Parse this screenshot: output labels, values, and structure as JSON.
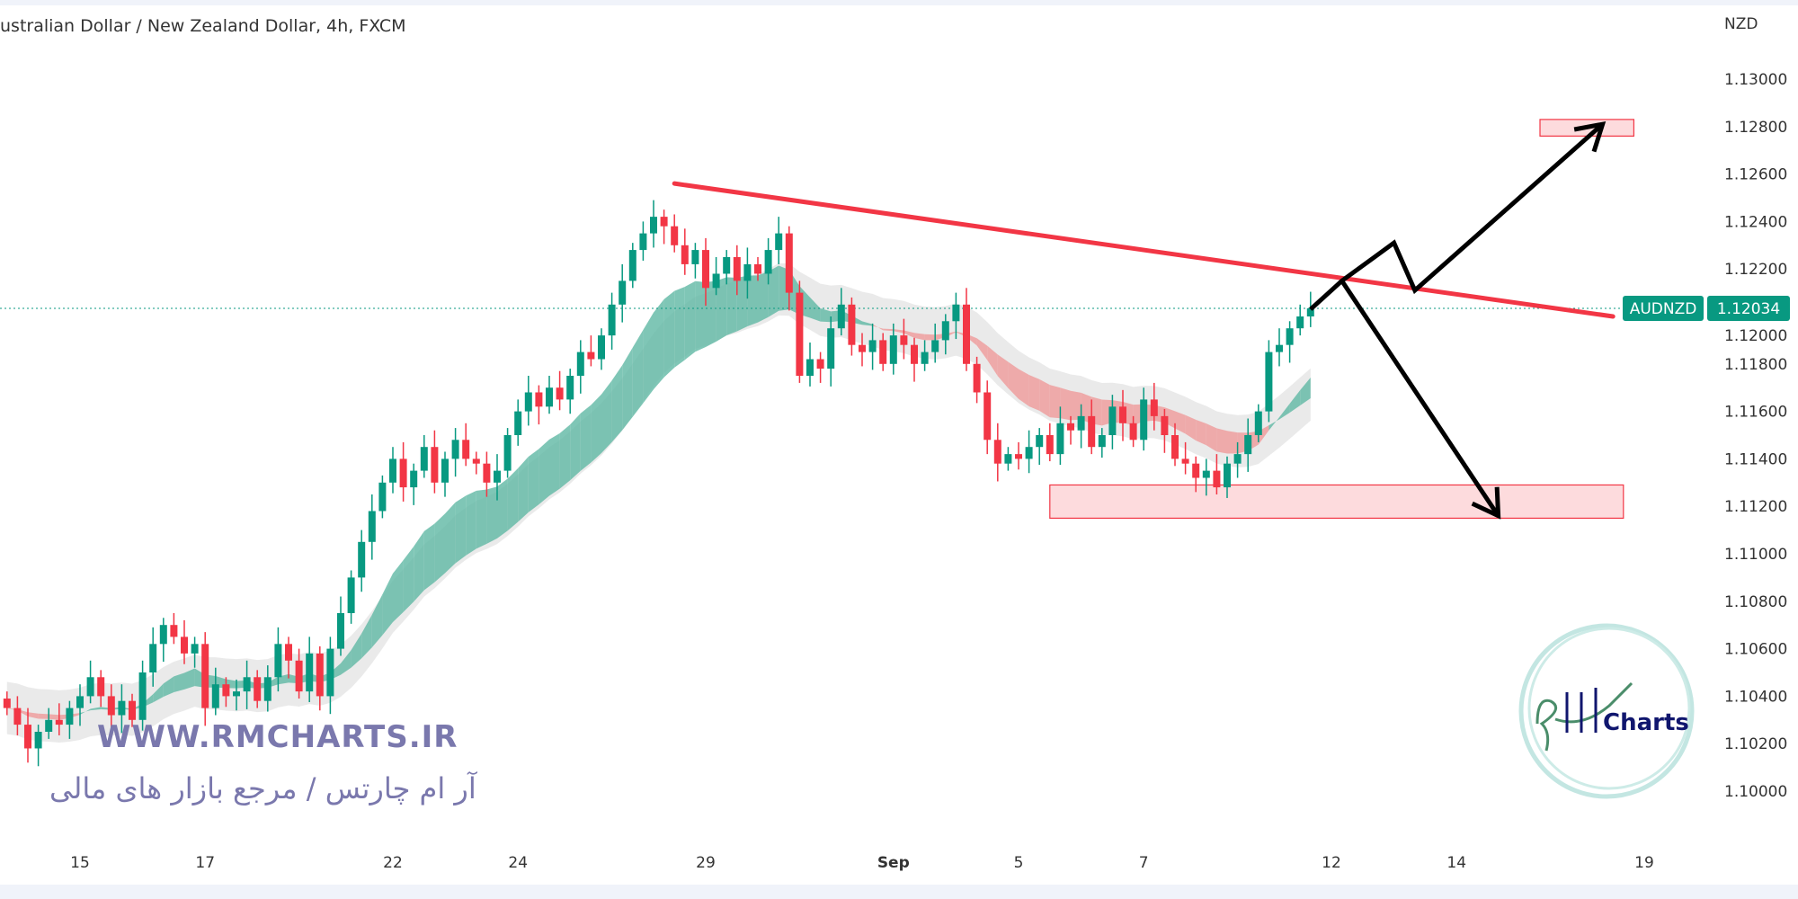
{
  "header": {
    "title": "ustralian Dollar / New Zealand Dollar, 4h, FXCM"
  },
  "price_axis": {
    "currency": "NZD"
  },
  "last_price_label": {
    "symbol": "AUDNZD",
    "price": "1.12034",
    "color": "#089981"
  },
  "watermark": {
    "site": "WWW.RMCHARTS.IR",
    "tagline": "آر ام چارتس / مرجع بازار های مالی",
    "logo_text": "Charts",
    "logo_script": "RM"
  },
  "chart_data": {
    "type": "candlestick",
    "title": "ustralian Dollar / New Zealand Dollar, 4h, FXCM",
    "ylim": [
      1.099,
      1.1315
    ],
    "y_ticks": [
      "1.13000",
      "1.12800",
      "1.12600",
      "1.12400",
      "1.12200",
      "1.12000",
      "1.11800",
      "1.11600",
      "1.11400",
      "1.11200",
      "1.11000",
      "1.10800",
      "1.10600",
      "1.10400",
      "1.10200",
      "1.10000"
    ],
    "x_ticks": [
      {
        "label": "15",
        "day": 0
      },
      {
        "label": "17",
        "day": 2
      },
      {
        "label": "22",
        "day": 5
      },
      {
        "label": "24",
        "day": 7
      },
      {
        "label": "29",
        "day": 10
      },
      {
        "label": "Sep",
        "day": 13
      },
      {
        "label": "5",
        "day": 15
      },
      {
        "label": "7",
        "day": 17
      },
      {
        "label": "12",
        "day": 20
      },
      {
        "label": "14",
        "day": 22
      },
      {
        "label": "19",
        "day": 25
      }
    ],
    "colors": {
      "up": "#089981",
      "down": "#f23645",
      "trendline": "#f23645",
      "zone": "#f23645",
      "arrows": "#000000"
    },
    "closes": [
      1.1035,
      1.1028,
      1.1018,
      1.1025,
      1.103,
      1.1028,
      1.1035,
      1.104,
      1.1048,
      1.104,
      1.1032,
      1.1038,
      1.103,
      1.105,
      1.1062,
      1.107,
      1.1065,
      1.1058,
      1.1062,
      1.1035,
      1.1045,
      1.104,
      1.1042,
      1.1048,
      1.1038,
      1.1048,
      1.1062,
      1.1055,
      1.1042,
      1.1058,
      1.104,
      1.106,
      1.1075,
      1.109,
      1.1105,
      1.1118,
      1.113,
      1.114,
      1.1128,
      1.1135,
      1.1145,
      1.113,
      1.114,
      1.1148,
      1.114,
      1.1138,
      1.113,
      1.1135,
      1.115,
      1.116,
      1.1168,
      1.1162,
      1.117,
      1.1165,
      1.1175,
      1.1185,
      1.1182,
      1.1192,
      1.1205,
      1.1215,
      1.1228,
      1.1235,
      1.1242,
      1.1238,
      1.123,
      1.1222,
      1.1228,
      1.1212,
      1.1218,
      1.1225,
      1.1215,
      1.1222,
      1.1218,
      1.1228,
      1.1235,
      1.121,
      1.1175,
      1.1182,
      1.1178,
      1.1195,
      1.1205,
      1.1188,
      1.1185,
      1.119,
      1.118,
      1.1192,
      1.1188,
      1.118,
      1.1185,
      1.119,
      1.1198,
      1.1205,
      1.118,
      1.1168,
      1.1148,
      1.1138,
      1.1142,
      1.114,
      1.1145,
      1.115,
      1.1142,
      1.1155,
      1.1152,
      1.1158,
      1.1145,
      1.115,
      1.1162,
      1.1155,
      1.1148,
      1.1165,
      1.1158,
      1.115,
      1.114,
      1.1138,
      1.1132,
      1.1135,
      1.1128,
      1.1138,
      1.1142,
      1.115,
      1.116,
      1.1185,
      1.1188,
      1.1195,
      1.12,
      1.12034
    ],
    "last_price": 1.12034,
    "trendline": [
      {
        "bar": 57,
        "price": 1.1256
      },
      {
        "bar": 147,
        "price": 1.12
      }
    ],
    "zones": [
      {
        "from_bar": 140,
        "to_bar": 149,
        "top": 1.1283,
        "bottom": 1.1276
      },
      {
        "from_bar": 93,
        "to_bar": 148,
        "top": 1.1129,
        "bottom": 1.1115
      }
    ],
    "arrows": [
      [
        {
          "bar": 118,
          "price": 1.1203
        },
        {
          "bar": 121,
          "price": 1.1215
        },
        {
          "bar": 126,
          "price": 1.1231
        },
        {
          "bar": 128,
          "price": 1.1211
        },
        {
          "bar": 146,
          "price": 1.1281
        }
      ],
      [
        {
          "bar": 121,
          "price": 1.1215
        },
        {
          "bar": 136,
          "price": 1.1116
        }
      ]
    ]
  }
}
